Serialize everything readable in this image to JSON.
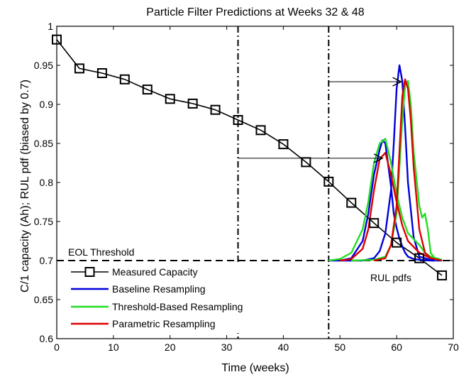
{
  "chart_data": {
    "type": "line",
    "title": "Particle Filter Predictions at Weeks 32 & 48",
    "xlabel": "Time (weeks)",
    "ylabel": "C/1 capacity (Ah);   RUL pdf (biased by 0.7)",
    "xlim": [
      0,
      70
    ],
    "ylim": [
      0.6,
      1.0
    ],
    "xticks": [
      "0",
      "10",
      "20",
      "30",
      "40",
      "50",
      "60",
      "70"
    ],
    "yticks": [
      "0.6",
      "0.65",
      "0.7",
      "0.75",
      "0.8",
      "0.85",
      "0.9",
      "0.95",
      "1"
    ],
    "grid": false,
    "legend_position": "bottom-left",
    "threshold": {
      "y": 0.7,
      "label": "EOL Threshold"
    },
    "prediction_weeks": [
      32,
      48
    ],
    "annotations": {
      "rul_label": "RUL pdfs"
    },
    "arrows": [
      {
        "from": [
          32,
          0.831
        ],
        "to": [
          57.5,
          0.831
        ]
      },
      {
        "from": [
          48,
          0.929
        ],
        "to": [
          60.8,
          0.929
        ]
      }
    ],
    "series": [
      {
        "name": "Measured Capacity",
        "color": "#000000",
        "marker": "square",
        "x": [
          0,
          4,
          8,
          12,
          16,
          20,
          24,
          28,
          32,
          36,
          40,
          44,
          48,
          52,
          56,
          60,
          64,
          68
        ],
        "y": [
          0.983,
          0.946,
          0.94,
          0.932,
          0.919,
          0.907,
          0.901,
          0.893,
          0.88,
          0.867,
          0.849,
          0.826,
          0.801,
          0.774,
          0.748,
          0.723,
          0.703,
          0.681
        ]
      },
      {
        "name": "Baseline Resampling",
        "color": "#0000dd",
        "x": [
          50,
          52,
          54,
          55,
          56,
          57,
          57.5,
          58,
          59,
          59.5,
          60,
          60.5,
          61,
          61.5,
          62,
          63,
          64,
          66,
          68,
          48,
          54,
          56,
          57,
          58,
          59,
          59.5,
          60,
          60.5,
          61,
          61.5,
          62,
          63,
          64,
          66,
          68
        ],
        "y": [
          0.7,
          0.703,
          0.725,
          0.76,
          0.81,
          0.842,
          0.854,
          0.85,
          0.795,
          0.76,
          0.742,
          0.728,
          0.718,
          0.71,
          0.705,
          0.702,
          0.701,
          0.7,
          0.7,
          0.7,
          0.7,
          0.703,
          0.712,
          0.735,
          0.79,
          0.85,
          0.92,
          0.95,
          0.93,
          0.87,
          0.8,
          0.73,
          0.705,
          0.701,
          0.7
        ]
      },
      {
        "name": "Threshold-Based Resampling",
        "color": "#22dd22",
        "x": [
          48,
          50,
          52,
          54,
          55,
          56,
          57,
          58,
          59,
          60,
          61,
          62,
          64,
          65,
          66,
          68,
          52,
          56,
          58,
          59,
          60,
          60.5,
          61,
          61.5,
          62,
          62.5,
          63,
          64,
          64.5,
          65,
          65.5,
          66,
          67
        ],
        "y": [
          0.7,
          0.702,
          0.71,
          0.74,
          0.775,
          0.825,
          0.85,
          0.856,
          0.825,
          0.785,
          0.755,
          0.735,
          0.72,
          0.71,
          0.705,
          0.701,
          0.7,
          0.701,
          0.705,
          0.72,
          0.76,
          0.82,
          0.88,
          0.925,
          0.93,
          0.9,
          0.84,
          0.77,
          0.755,
          0.76,
          0.74,
          0.71,
          0.7
        ]
      },
      {
        "name": "Parametric Resampling",
        "color": "#dd0000",
        "x": [
          50,
          52,
          54,
          55,
          56,
          57,
          58,
          59,
          60,
          61,
          62,
          64,
          66,
          68,
          56,
          58,
          59,
          60,
          60.5,
          61,
          61.5,
          62,
          62.5,
          63,
          64,
          65,
          66,
          68
        ],
        "y": [
          0.7,
          0.702,
          0.715,
          0.74,
          0.79,
          0.83,
          0.838,
          0.81,
          0.775,
          0.745,
          0.725,
          0.71,
          0.703,
          0.7,
          0.7,
          0.703,
          0.72,
          0.77,
          0.84,
          0.91,
          0.932,
          0.92,
          0.88,
          0.82,
          0.74,
          0.71,
          0.703,
          0.7
        ]
      }
    ]
  }
}
